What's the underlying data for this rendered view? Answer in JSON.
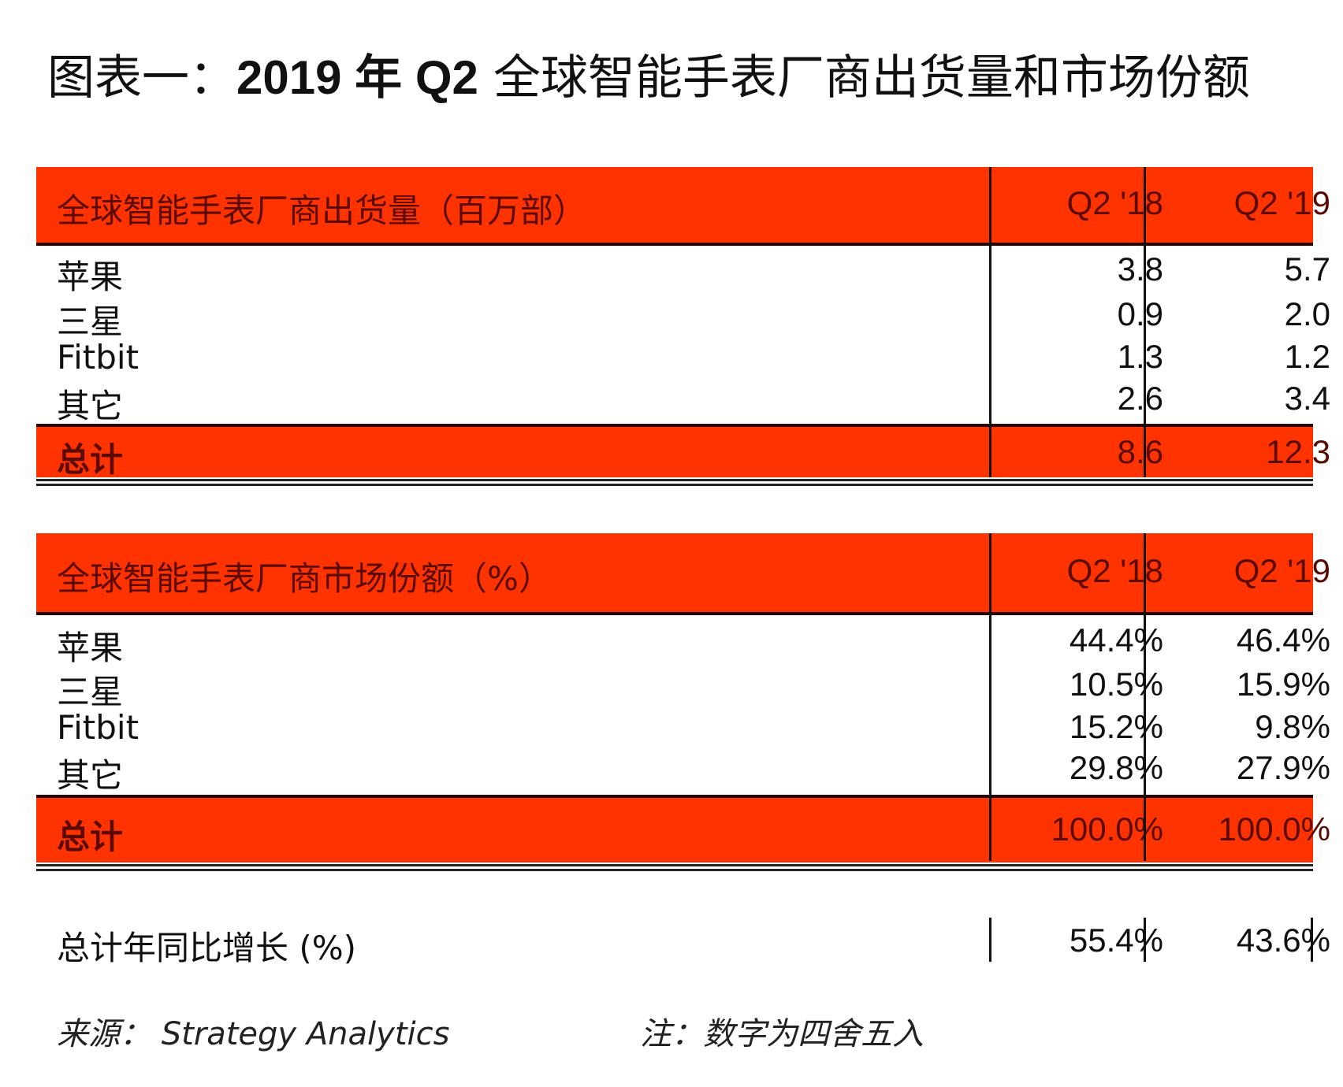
{
  "title": {
    "prefix": "图表一：",
    "bold": "2019 年 Q2",
    "rest": " 全球智能手表厂商出货量和市场份额"
  },
  "shipments": {
    "header": "全球智能手表厂商出货量（百万部）",
    "col1": "Q2 '18",
    "col2": "Q2 '19",
    "rows": [
      {
        "label": "苹果",
        "q218": "3.8",
        "q219": "5.7"
      },
      {
        "label": "三星",
        "q218": "0.9",
        "q219": "2.0"
      },
      {
        "label": "Fitbit",
        "q218": "1.3",
        "q219": "1.2"
      },
      {
        "label": "其它",
        "q218": "2.6",
        "q219": "3.4"
      }
    ],
    "total": {
      "label": "总计",
      "q218": "8.6",
      "q219": "12.3"
    }
  },
  "share": {
    "header": "全球智能手表厂商市场份额（%）",
    "col1": "Q2 '18",
    "col2": "Q2 '19",
    "rows": [
      {
        "label": "苹果",
        "q218": "44.4%",
        "q219": "46.4%"
      },
      {
        "label": "三星",
        "q218": "10.5%",
        "q219": "15.9%"
      },
      {
        "label": "Fitbit",
        "q218": "15.2%",
        "q219": "9.8%"
      },
      {
        "label": "其它",
        "q218": "29.8%",
        "q219": "27.9%"
      }
    ],
    "total": {
      "label": "总计",
      "q218": "100.0%",
      "q219": "100.0%"
    }
  },
  "yoy": {
    "label": "总计年同比增长 (%)",
    "q218": "55.4%",
    "q219": "43.6%"
  },
  "footer": {
    "source": "来源：  Strategy Analytics",
    "note": "注：数字为四舍五入"
  },
  "colors": {
    "header_bg": "#ff3300",
    "header_text": "#5a0a00"
  }
}
